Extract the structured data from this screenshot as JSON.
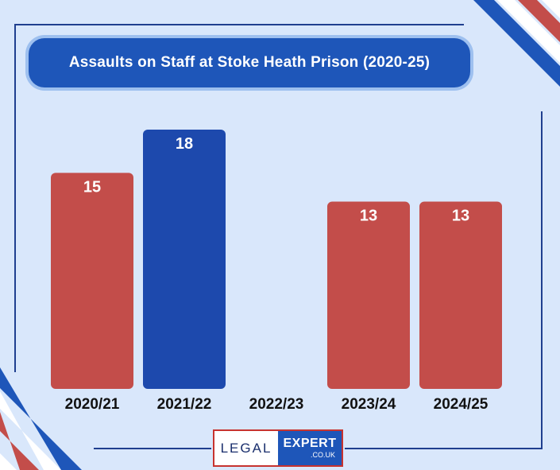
{
  "chart_data": {
    "type": "bar",
    "title": "Assaults on Staff at Stoke Heath Prison (2020-25)",
    "categories": [
      "2020/21",
      "2021/22",
      "2022/23",
      "2023/24",
      "2024/25"
    ],
    "values": [
      15,
      18,
      null,
      13,
      13
    ],
    "value_labels": [
      "15",
      "18",
      "",
      "13",
      "13"
    ],
    "ylim": [
      0,
      18
    ],
    "xlabel": "",
    "ylabel": "",
    "grid": false,
    "bar_colors": [
      "#c34d4a",
      "#1d49ad",
      "#c34d4a",
      "#c34d4a",
      "#c34d4a"
    ]
  },
  "logo": {
    "left_text": "LEGAL",
    "right_text": "EXPERT",
    "sub_text": ".CO.UK"
  },
  "colors": {
    "background": "#d9e7fb",
    "accent_blue": "#1e56b9",
    "accent_red": "#c34d4a"
  }
}
